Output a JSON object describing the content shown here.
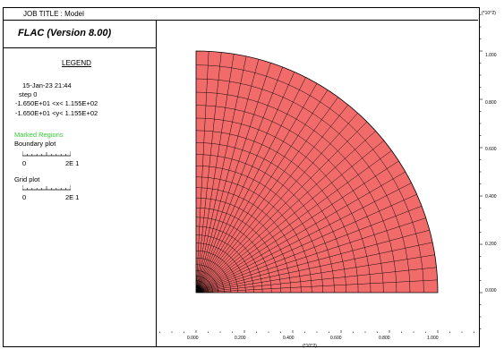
{
  "header": {
    "job_title": "JOB TITLE : Model",
    "exponent_label": "(*10^2)"
  },
  "panel": {
    "app_title": "FLAC (Version 8.00)",
    "legend_title": "LEGEND",
    "date_line": "15-Jan-23  21:44",
    "step_line": "step      0",
    "x_range": "-1.650E+01 <x<  1.155E+02",
    "y_range": "-1.650E+01 <y<  1.155E+02",
    "marked_regions": "Marked Regions",
    "boundary_plot": "Boundary plot",
    "boundary_scale_min": "0",
    "boundary_scale_max": "2E  1",
    "grid_plot": "Grid plot",
    "grid_scale_min": "0",
    "grid_scale_max": "2E  1"
  },
  "plot": {
    "y_ticks": [
      "1.000",
      "0.800",
      "0.600",
      "0.400",
      "0.200",
      "0.000"
    ],
    "x_ticks": [
      "0.000",
      "0.200",
      "0.400",
      "0.600",
      "0.800",
      "1.000"
    ],
    "x_exponent_label": "(*10^2)",
    "mesh_fill": "#f26b6b",
    "mesh_line": "#000000"
  }
}
